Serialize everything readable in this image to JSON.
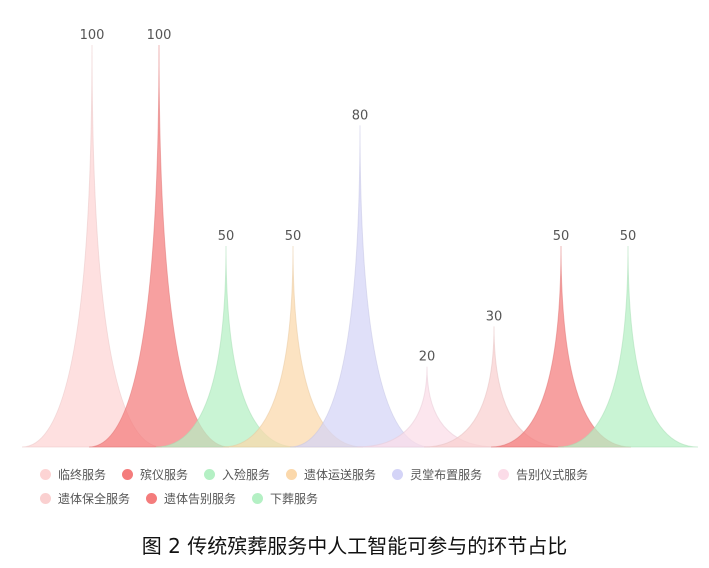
{
  "chart_data": {
    "type": "pictorial-bar",
    "categories": [
      "临终服务",
      "殡仪服务",
      "入殓服务",
      "遗体运送服务",
      "灵堂布置服务",
      "告别仪式服务",
      "遗体保全服务",
      "遗体告别服务",
      "下葬服务"
    ],
    "values": [
      100,
      100,
      50,
      50,
      80,
      20,
      30,
      50,
      50
    ],
    "colors": [
      "#fdd4d4",
      "#f47c7c",
      "#b4f0c4",
      "#fbd8ab",
      "#d4d4f7",
      "#fbdce8",
      "#fad0d0",
      "#f47c7c",
      "#b4f0c4"
    ],
    "ylim": [
      0,
      100
    ],
    "legend_position": "bottom",
    "grid": false
  },
  "caption": "图 2  传统殡葬服务中人工智能可参与的环节占比"
}
